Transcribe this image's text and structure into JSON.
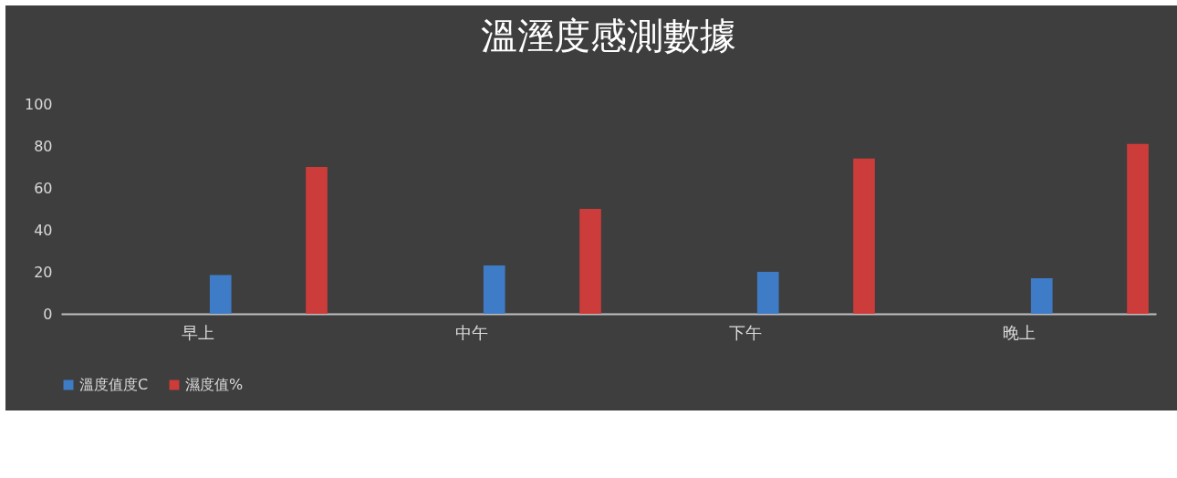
{
  "chart_data": {
    "type": "bar",
    "title": "溫溼度感測數據",
    "categories": [
      "早上",
      "中午",
      "下午",
      "晚上"
    ],
    "series": [
      {
        "name": "溫度值度C",
        "color": "#3f7cc8",
        "values": [
          18.5,
          23,
          20,
          17
        ]
      },
      {
        "name": "濕度值%",
        "color": "#cc3c3a",
        "values": [
          70,
          50,
          74,
          81
        ]
      }
    ],
    "ylim": [
      0,
      100
    ],
    "yticks": [
      0,
      20,
      40,
      60,
      80,
      100
    ],
    "grid": false,
    "legend": "bottom"
  }
}
